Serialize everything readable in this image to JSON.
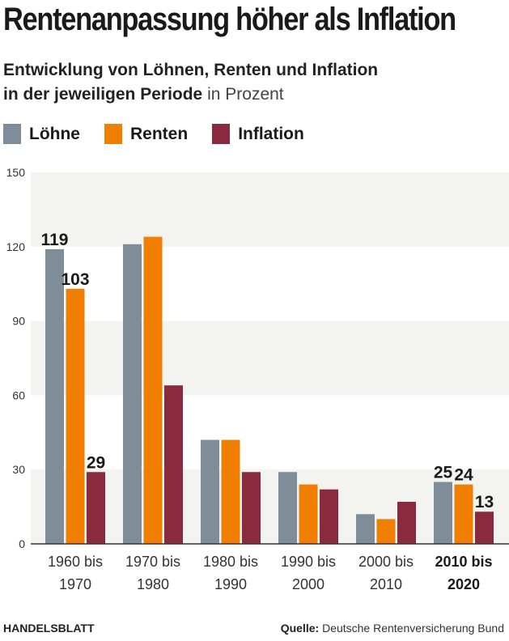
{
  "header": {
    "title": "Rentenanpassung höher als Inflation",
    "subtitle_line1": "Entwicklung von Löhnen, Renten und Inflation",
    "subtitle_line2_bold": "in der jeweiligen Periode",
    "subtitle_line2_light": " in Prozent"
  },
  "footer": {
    "brand": "HANDELSBLATT",
    "source_label": "Quelle:",
    "source_text": " Deutsche Rentenversicherung Bund"
  },
  "chart_data": {
    "type": "bar",
    "title": "Rentenanpassung höher als Inflation",
    "subtitle": "Entwicklung von Löhnen, Renten und Inflation in der jeweiligen Periode in Prozent",
    "xlabel": "",
    "ylabel": "",
    "ylim": [
      0,
      150
    ],
    "yticks": [
      0,
      30,
      60,
      90,
      120,
      150
    ],
    "grid": "alternating bands",
    "legend_position": "top-left",
    "categories": [
      [
        "1960 bis",
        "1970"
      ],
      [
        "1970 bis",
        "1980"
      ],
      [
        "1980 bis",
        "1990"
      ],
      [
        "1990 bis",
        "2000"
      ],
      [
        "2000 bis",
        "2010"
      ],
      [
        "2010 bis",
        "2020"
      ]
    ],
    "highlight_category": 5,
    "series": [
      {
        "name": "Löhne",
        "color": "#7d8d99",
        "values": [
          119,
          121,
          42,
          29,
          12,
          25
        ]
      },
      {
        "name": "Renten",
        "color": "#f07f00",
        "values": [
          103,
          124,
          42,
          24,
          10,
          24
        ]
      },
      {
        "name": "Inflation",
        "color": "#8a2a3f",
        "values": [
          29,
          64,
          29,
          22,
          17,
          13
        ]
      }
    ],
    "data_labels": [
      {
        "category": 0,
        "series": 0,
        "text": "119"
      },
      {
        "category": 0,
        "series": 1,
        "text": "103"
      },
      {
        "category": 0,
        "series": 2,
        "text": "29"
      },
      {
        "category": 5,
        "series": 0,
        "text": "25"
      },
      {
        "category": 5,
        "series": 1,
        "text": "24"
      },
      {
        "category": 5,
        "series": 2,
        "text": "13"
      }
    ],
    "band_color": "#f3f3f0",
    "axis_color": "#333333"
  }
}
